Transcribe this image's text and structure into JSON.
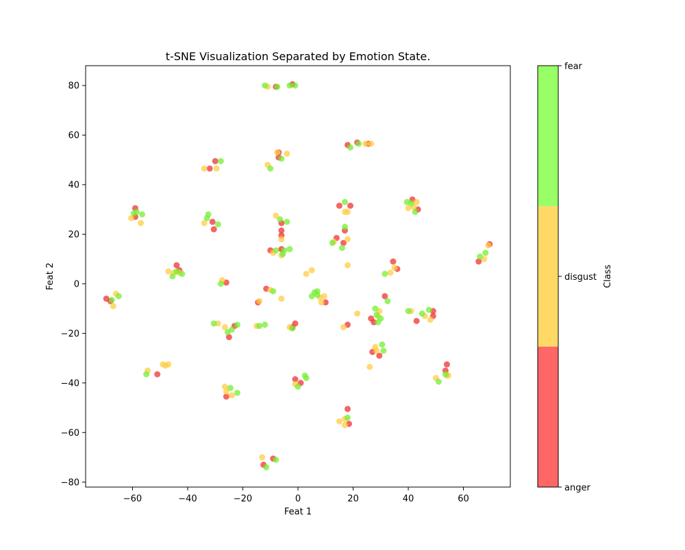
{
  "chart_data": {
    "type": "scatter",
    "title": "t-SNE Visualization Separated by Emotion State.",
    "xlabel": "Feat 1",
    "ylabel": "Feat 2",
    "xlim": [
      -77,
      77
    ],
    "ylim": [
      -82,
      88
    ],
    "xticks": [
      -60,
      -40,
      -20,
      0,
      20,
      40,
      60
    ],
    "yticks": [
      -80,
      -60,
      -40,
      -20,
      0,
      20,
      40,
      60,
      80
    ],
    "grid": false,
    "colorbar": {
      "label": "Class",
      "classes": [
        {
          "name": "anger",
          "color": "#ff6666"
        },
        {
          "name": "disgust",
          "color": "#ffd966"
        },
        {
          "name": "fear",
          "color": "#99ff66"
        }
      ]
    },
    "marker_colors": {
      "anger": "#ee3333",
      "disgust": "#ffcc44",
      "fear": "#77ee33"
    },
    "series": [
      {
        "name": "anger",
        "points": [
          [
            -69.5,
            -6
          ],
          [
            -68,
            -7
          ],
          [
            -59,
            30.5
          ],
          [
            -59,
            27
          ],
          [
            -51,
            -36.5
          ],
          [
            -44,
            7.5
          ],
          [
            -43,
            5.5
          ],
          [
            -32,
            46.5
          ],
          [
            -31,
            25
          ],
          [
            -30.5,
            22
          ],
          [
            -30,
            49.5
          ],
          [
            -26,
            0.5
          ],
          [
            -26,
            -45.5
          ],
          [
            -25,
            -21.5
          ],
          [
            -23,
            -17
          ],
          [
            -14.5,
            -7.5
          ],
          [
            -12.5,
            -73
          ],
          [
            -11.5,
            -2
          ],
          [
            -10,
            13.5
          ],
          [
            -9,
            -70.5
          ],
          [
            -8,
            79.5
          ],
          [
            -7,
            53
          ],
          [
            -7,
            51
          ],
          [
            -6,
            24.5
          ],
          [
            -6,
            21.5
          ],
          [
            -6,
            19.5
          ],
          [
            -6,
            14
          ],
          [
            -2,
            80.5
          ],
          [
            -2,
            -17.5
          ],
          [
            -1,
            -16
          ],
          [
            -1,
            -38.5
          ],
          [
            1,
            -40
          ],
          [
            10,
            -7.5
          ],
          [
            14,
            18.5
          ],
          [
            15,
            31.5
          ],
          [
            16.5,
            16.5
          ],
          [
            17,
            21.5
          ],
          [
            18,
            -16.5
          ],
          [
            18,
            56
          ],
          [
            18,
            -50.5
          ],
          [
            18.5,
            -56.5
          ],
          [
            19,
            31.5
          ],
          [
            21.5,
            57
          ],
          [
            25.5,
            56.5
          ],
          [
            26.5,
            -14
          ],
          [
            27,
            -27.5
          ],
          [
            27.5,
            -15.5
          ],
          [
            29.5,
            -29
          ],
          [
            31.5,
            -5
          ],
          [
            34.5,
            9
          ],
          [
            36,
            6
          ],
          [
            41.5,
            34
          ],
          [
            43,
            -15
          ],
          [
            43.5,
            30
          ],
          [
            49,
            -11
          ],
          [
            49,
            -13
          ],
          [
            53.5,
            -35
          ],
          [
            54,
            -32.5
          ],
          [
            65.5,
            9
          ],
          [
            69.5,
            16
          ]
        ]
      },
      {
        "name": "disgust",
        "points": [
          [
            -67,
            -9
          ],
          [
            -66,
            -4
          ],
          [
            -60.5,
            26.5
          ],
          [
            -57,
            24.5
          ],
          [
            -54.5,
            -35
          ],
          [
            -49,
            -32.5
          ],
          [
            -48,
            -33
          ],
          [
            -47,
            -32.5
          ],
          [
            -47,
            5
          ],
          [
            -45,
            4.5
          ],
          [
            -43,
            4.5
          ],
          [
            -34,
            46.5
          ],
          [
            -34,
            24.5
          ],
          [
            -29.5,
            46.5
          ],
          [
            -29,
            -16
          ],
          [
            -27.5,
            1.5
          ],
          [
            -26.5,
            -17.5
          ],
          [
            -26.5,
            -41.5
          ],
          [
            -26,
            -43.5
          ],
          [
            -24,
            -45
          ],
          [
            -15,
            -17
          ],
          [
            -14,
            -7
          ],
          [
            -13,
            -70
          ],
          [
            -11,
            48
          ],
          [
            -11,
            79.5
          ],
          [
            -10,
            -2.5
          ],
          [
            -9,
            12.5
          ],
          [
            -8,
            27.5
          ],
          [
            -7.5,
            53
          ],
          [
            -6,
            11.5
          ],
          [
            -6,
            18
          ],
          [
            -6,
            -6
          ],
          [
            -4,
            52.5
          ],
          [
            -3,
            -17.5
          ],
          [
            -1,
            -40.5
          ],
          [
            3,
            4
          ],
          [
            5,
            5.5
          ],
          [
            8,
            -5.5
          ],
          [
            8.5,
            -7.5
          ],
          [
            9.5,
            -5
          ],
          [
            13,
            17
          ],
          [
            15,
            -55.5
          ],
          [
            16.5,
            -17.5
          ],
          [
            17,
            -54.5
          ],
          [
            17,
            29
          ],
          [
            17,
            -57
          ],
          [
            18,
            18
          ],
          [
            18,
            29
          ],
          [
            18,
            7.5
          ],
          [
            21.5,
            -12
          ],
          [
            24.5,
            56.5
          ],
          [
            26.5,
            56.5
          ],
          [
            26,
            -33.5
          ],
          [
            28,
            -25.5
          ],
          [
            28.5,
            -27
          ],
          [
            29,
            -13
          ],
          [
            29.5,
            -11
          ],
          [
            33.5,
            4.5
          ],
          [
            35,
            6.5
          ],
          [
            40,
            30.5
          ],
          [
            41,
            -11
          ],
          [
            42,
            31
          ],
          [
            43,
            33
          ],
          [
            46,
            -13
          ],
          [
            48,
            -14.5
          ],
          [
            50,
            -38
          ],
          [
            54,
            -37
          ],
          [
            54.5,
            -37
          ],
          [
            67.5,
            10
          ],
          [
            69,
            15.5
          ]
        ]
      },
      {
        "name": "fear",
        "points": [
          [
            -67.5,
            -6.5
          ],
          [
            -65,
            -5
          ],
          [
            -59.5,
            28.5
          ],
          [
            -58.5,
            29
          ],
          [
            -56.5,
            28
          ],
          [
            -55,
            -36.5
          ],
          [
            -45.5,
            3
          ],
          [
            -44,
            5
          ],
          [
            -42,
            4
          ],
          [
            -33,
            26.5
          ],
          [
            -32.5,
            28
          ],
          [
            -30.5,
            -16
          ],
          [
            -29,
            24
          ],
          [
            -28,
            49.5
          ],
          [
            -28,
            0
          ],
          [
            -25.5,
            -19.5
          ],
          [
            -24.5,
            -42
          ],
          [
            -24,
            -18.5
          ],
          [
            -22,
            -44
          ],
          [
            -22,
            -16.5
          ],
          [
            -14,
            -17
          ],
          [
            -12,
            80
          ],
          [
            -12,
            -16.5
          ],
          [
            -11.5,
            -74
          ],
          [
            -10,
            46.5
          ],
          [
            -9,
            -3
          ],
          [
            -8,
            -71
          ],
          [
            -8,
            13.5
          ],
          [
            -7.5,
            79.5
          ],
          [
            -6.5,
            26
          ],
          [
            -6,
            50.5
          ],
          [
            -5.5,
            12
          ],
          [
            -5,
            13.5
          ],
          [
            -4,
            25
          ],
          [
            -3,
            14
          ],
          [
            -3,
            80
          ],
          [
            -2,
            -18
          ],
          [
            -1,
            80
          ],
          [
            0,
            -41.5
          ],
          [
            2.5,
            -37
          ],
          [
            3,
            -38
          ],
          [
            5,
            -5
          ],
          [
            6,
            -3.5
          ],
          [
            7,
            -3
          ],
          [
            7,
            -4.5
          ],
          [
            12.5,
            16.5
          ],
          [
            16,
            14.5
          ],
          [
            17,
            33
          ],
          [
            17,
            23
          ],
          [
            18,
            -54
          ],
          [
            19,
            55
          ],
          [
            22,
            56.5
          ],
          [
            28,
            -10
          ],
          [
            28.5,
            -12.5
          ],
          [
            29,
            -15.5
          ],
          [
            30,
            -14
          ],
          [
            30.5,
            -24.5
          ],
          [
            31,
            -27
          ],
          [
            31.5,
            4
          ],
          [
            32.5,
            -7
          ],
          [
            39.5,
            33
          ],
          [
            40,
            -11
          ],
          [
            41,
            32.5
          ],
          [
            42.5,
            29
          ],
          [
            45,
            -12
          ],
          [
            47.5,
            -10.5
          ],
          [
            51,
            -39.5
          ],
          [
            53.5,
            -36.5
          ],
          [
            66,
            11
          ],
          [
            68,
            12.5
          ]
        ]
      }
    ]
  }
}
